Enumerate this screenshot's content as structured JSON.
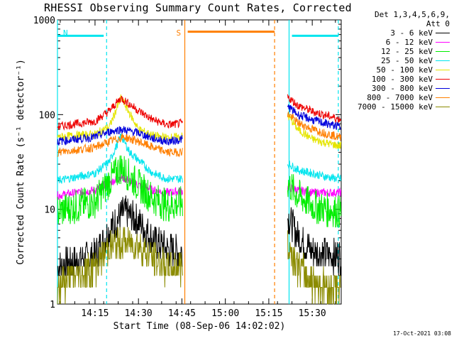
{
  "title": "RHESSI Observing Summary Count Rates, Corrected",
  "legend": {
    "det_line1": "Det 1,3,4,5,6,9,",
    "det_line2": "Att 0"
  },
  "stamp": "17-Oct-2021 03:08",
  "chart_data": {
    "type": "line",
    "title": "RHESSI Observing Summary Count Rates, Corrected",
    "xlabel": "Start Time (08-Sep-06 14:02:02)",
    "ylabel": "Corrected Count Rate (s⁻¹ detector⁻¹)",
    "ylog": true,
    "ylim": [
      1,
      1000
    ],
    "xlim": [
      "14:02:02",
      "15:40:00"
    ],
    "x_ticks": [
      "14:15",
      "14:30",
      "14:45",
      "15:00",
      "15:15",
      "15:30"
    ],
    "y_ticks": [
      1,
      10,
      100,
      1000
    ],
    "data_gap": [
      "14:45:20",
      "15:21:30"
    ],
    "markers": [
      {
        "label": "N",
        "time": "14:02:02",
        "type": "night_start",
        "color": "#00e5ee"
      },
      {
        "label": "",
        "time": "14:19:00",
        "type": "night_end",
        "color": "#00e5ee"
      },
      {
        "label": "S",
        "time": "14:46:00",
        "type": "saa_start",
        "color": "#ff7f00"
      },
      {
        "label": "",
        "time": "15:17:00",
        "type": "saa_end",
        "color": "#ff7f00"
      },
      {
        "label": "",
        "time": "15:22:00",
        "type": "night_start",
        "color": "#00e5ee"
      },
      {
        "label": "",
        "time": "15:39:00",
        "type": "night_end",
        "color": "#00e5ee"
      }
    ],
    "bars": [
      {
        "label": "N",
        "from": "14:02:02",
        "to": "14:18:00",
        "value": 680,
        "color": "#00e5ee"
      },
      {
        "label": "S",
        "from": "14:47:00",
        "to": "15:17:00",
        "value": 750,
        "color": "#ff7f00"
      },
      {
        "label": "",
        "from": "15:23:00",
        "to": "15:39:00",
        "value": 680,
        "color": "#00e5ee"
      }
    ],
    "legend_position": "right",
    "series": [
      {
        "name": "3 - 6 keV",
        "color": "#000000",
        "x": [
          "14:02",
          "14:15",
          "14:20",
          "14:25",
          "14:30",
          "14:35",
          "14:40",
          "14:44",
          "15:22",
          "15:25",
          "15:30",
          "15:35",
          "15:39"
        ],
        "values": [
          2.5,
          3.2,
          6.0,
          9.5,
          7.5,
          4.8,
          3.8,
          3.5,
          8.0,
          5.2,
          3.6,
          3.3,
          3.2
        ]
      },
      {
        "name": "6 - 12 keV",
        "color": "#ff00ff",
        "x": [
          "14:02",
          "14:15",
          "14:20",
          "14:24",
          "14:30",
          "14:35",
          "14:40",
          "14:44",
          "15:22",
          "15:25",
          "15:30",
          "15:35",
          "15:39"
        ],
        "values": [
          14.0,
          16.0,
          19.0,
          22.0,
          18.0,
          16.0,
          15.0,
          15.5,
          17.0,
          16.0,
          15.0,
          15.0,
          15.0
        ]
      },
      {
        "name": "12 - 25 keV",
        "color": "#00ee00",
        "x": [
          "14:02",
          "14:15",
          "14:20",
          "14:24",
          "14:30",
          "14:35",
          "14:40",
          "14:44",
          "15:22",
          "15:25",
          "15:30",
          "15:35",
          "15:39"
        ],
        "values": [
          9.5,
          12.0,
          20.0,
          28.0,
          18.0,
          13.0,
          11.0,
          11.5,
          18.0,
          14.0,
          11.0,
          10.0,
          9.5
        ]
      },
      {
        "name": "25 - 50 keV",
        "color": "#00e5ee",
        "x": [
          "14:02",
          "14:15",
          "14:20",
          "14:24",
          "14:27",
          "14:35",
          "14:40",
          "14:44",
          "15:22",
          "15:25",
          "15:30",
          "15:35",
          "15:39"
        ],
        "values": [
          20.0,
          24.0,
          32.0,
          60.0,
          40.0,
          24.0,
          21.0,
          21.0,
          30.0,
          26.0,
          24.0,
          22.0,
          21.0
        ]
      },
      {
        "name": "50 - 100 keV",
        "color": "#e5e500",
        "x": [
          "14:02",
          "14:15",
          "14:20",
          "14:24",
          "14:30",
          "14:35",
          "14:40",
          "14:44",
          "15:22",
          "15:25",
          "15:30",
          "15:35",
          "15:39"
        ],
        "values": [
          58.0,
          62.0,
          75.0,
          150.0,
          70.0,
          60.0,
          57.0,
          58.0,
          95.0,
          70.0,
          55.0,
          50.0,
          47.0
        ]
      },
      {
        "name": "100 - 300 keV",
        "color": "#ee0000",
        "x": [
          "14:02",
          "14:15",
          "14:20",
          "14:24",
          "14:30",
          "14:35",
          "14:40",
          "14:44",
          "15:22",
          "15:25",
          "15:30",
          "15:35",
          "15:39"
        ],
        "values": [
          75.0,
          85.0,
          110.0,
          150.0,
          110.0,
          88.0,
          78.0,
          80.0,
          150.0,
          125.0,
          108.0,
          98.0,
          90.0
        ]
      },
      {
        "name": "300 - 800 keV",
        "color": "#0000dd",
        "x": [
          "14:02",
          "14:15",
          "14:20",
          "14:24",
          "14:30",
          "14:35",
          "14:40",
          "14:44",
          "15:22",
          "15:25",
          "15:30",
          "15:35",
          "15:39"
        ],
        "values": [
          52.0,
          58.0,
          66.0,
          70.0,
          64.0,
          56.0,
          52.0,
          54.0,
          120.0,
          100.0,
          88.0,
          80.0,
          75.0
        ]
      },
      {
        "name": "800 - 7000 keV",
        "color": "#ff7f00",
        "x": [
          "14:02",
          "14:15",
          "14:20",
          "14:25",
          "14:30",
          "14:35",
          "14:40",
          "14:44",
          "15:22",
          "15:25",
          "15:30",
          "15:35",
          "15:39"
        ],
        "values": [
          40.0,
          45.0,
          52.0,
          58.0,
          52.0,
          45.0,
          40.0,
          40.0,
          100.0,
          82.0,
          70.0,
          63.0,
          58.0
        ]
      },
      {
        "name": "7000 - 15000 keV",
        "color": "#8b8b00",
        "x": [
          "14:02",
          "14:15",
          "14:20",
          "14:25",
          "14:30",
          "14:35",
          "14:40",
          "14:44",
          "15:22",
          "15:25",
          "15:30",
          "15:35",
          "15:39"
        ],
        "values": [
          1.6,
          2.5,
          4.0,
          4.5,
          4.2,
          3.0,
          2.4,
          2.5,
          4.0,
          2.5,
          1.8,
          1.5,
          1.5
        ]
      }
    ]
  }
}
